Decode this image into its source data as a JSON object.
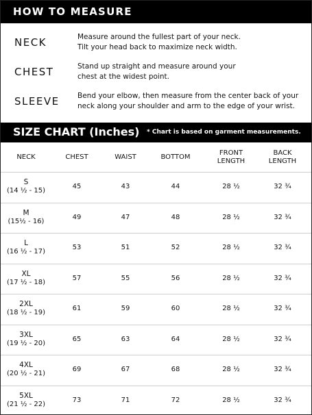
{
  "header": {
    "title": "HOW TO MEASURE"
  },
  "measure": [
    {
      "label": "NECK",
      "text": "Measure around the fullest part of your neck.\nTilt your head back to maximize neck width."
    },
    {
      "label": "CHEST",
      "text": "Stand up straight and measure around your\nchest at the widest point."
    },
    {
      "label": "SLEEVE",
      "text": "Bend your elbow, then measure from the center back of your\nneck along your shoulder and arm to the edge of your wrist."
    }
  ],
  "size_chart": {
    "title": "SIZE CHART (Inches)",
    "note": "* Chart is based on garment measurements."
  },
  "table": {
    "header": [
      "NECK",
      "CHEST",
      "WAIST",
      "BOTTOM",
      "FRONT\nLENGTH",
      "BACK\nLENGTH"
    ],
    "rows": [
      [
        "S",
        "(14 ½ - 15)",
        45,
        43,
        44,
        "28 ½",
        "32 ¾"
      ],
      [
        "M",
        "(15½ - 16)",
        49,
        47,
        48,
        "28 ½",
        "32 ¾"
      ],
      [
        "L",
        "(16 ½ - 17)",
        53,
        51,
        52,
        "28 ½",
        "32 ¾"
      ],
      [
        "XL",
        "(17 ½ - 18)",
        57,
        55,
        56,
        "28 ½",
        "32 ¾"
      ],
      [
        "2XL",
        "(18 ½ - 19)",
        61,
        59,
        60,
        "28 ½",
        "32 ¾"
      ],
      [
        "3XL",
        "(19 ½ - 20)",
        65,
        63,
        64,
        "28 ½",
        "32 ¾"
      ],
      [
        "4XL",
        "(20 ½ - 21)",
        69,
        67,
        68,
        "28 ½",
        "32 ¾"
      ],
      [
        "5XL",
        "(21 ½ - 22)",
        73,
        71,
        72,
        "28 ½",
        "32 ¾"
      ]
    ]
  }
}
